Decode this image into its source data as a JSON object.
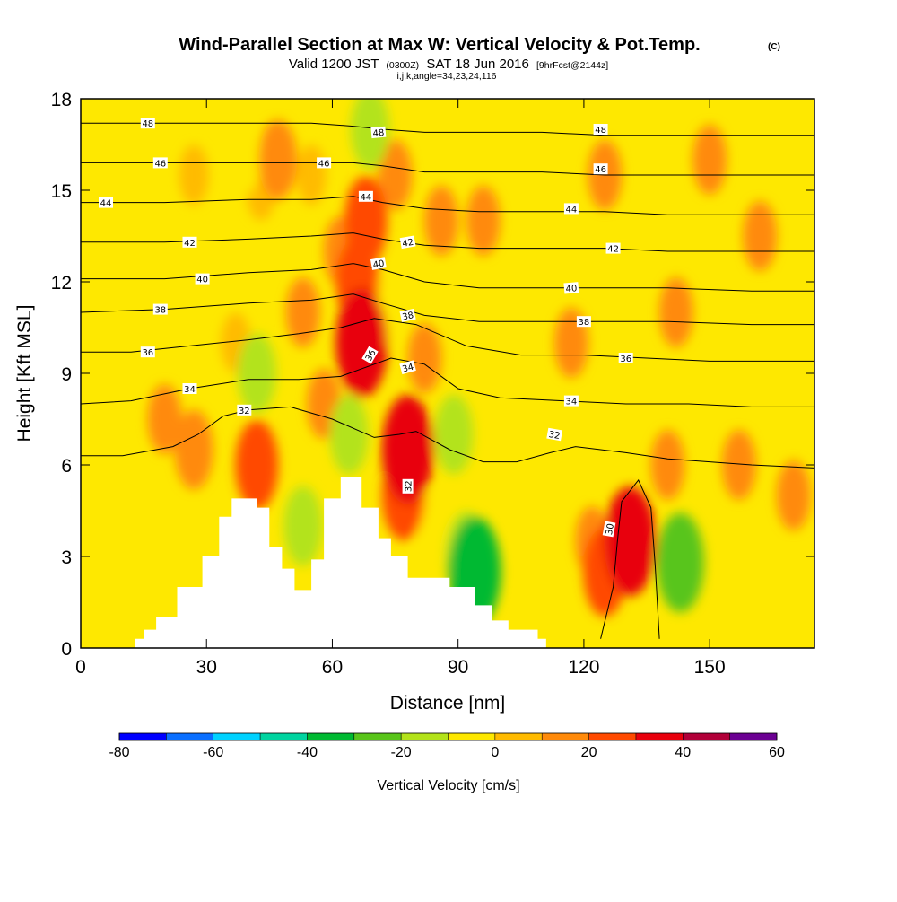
{
  "title": {
    "main": "Wind-Parallel Section at Max W: Vertical Velocity & Pot.Temp.",
    "copyright": "(C)",
    "valid_prefix": "Valid 1200 JST",
    "valid_utc": "(0300Z)",
    "valid_date": "SAT 18 Jun 2016",
    "forecast": "[9hrFcst@2144z]",
    "indices": "i,j,k,angle=34,23,24,116"
  },
  "colors": {
    "background_field": "#fee800",
    "contour": "#000000",
    "terrain": "#ffffff"
  },
  "chart_data": {
    "type": "heatmap",
    "xlabel": "Distance [nm]",
    "ylabel": "Height [Kft MSL]",
    "xlim": [
      0,
      175
    ],
    "ylim": [
      0,
      18
    ],
    "x_ticks": [
      "0",
      "30",
      "60",
      "90",
      "120",
      "150"
    ],
    "y_ticks": [
      "0",
      "3",
      "6",
      "9",
      "12",
      "15",
      "18"
    ],
    "terrain_profile": [
      [
        13,
        0.3
      ],
      [
        15,
        0.6
      ],
      [
        18,
        1.0
      ],
      [
        23,
        2.0
      ],
      [
        29,
        3.0
      ],
      [
        33,
        4.3
      ],
      [
        36,
        4.9
      ],
      [
        42,
        4.6
      ],
      [
        45,
        3.3
      ],
      [
        48,
        2.6
      ],
      [
        51,
        1.9
      ],
      [
        55,
        2.9
      ],
      [
        58,
        4.9
      ],
      [
        62,
        5.6
      ],
      [
        67,
        4.6
      ],
      [
        71,
        3.6
      ],
      [
        74,
        3.0
      ],
      [
        78,
        2.3
      ],
      [
        88,
        2.0
      ],
      [
        94,
        1.4
      ],
      [
        98,
        0.9
      ],
      [
        102,
        0.6
      ],
      [
        109,
        0.3
      ]
    ],
    "vertical_velocity_cells": [
      {
        "x": 27,
        "y": 15.5,
        "value": 5
      },
      {
        "x": 27,
        "y": 6.5,
        "value": 15
      },
      {
        "x": 20,
        "y": 7.5,
        "value": 10
      },
      {
        "x": 37,
        "y": 10,
        "value": 5
      },
      {
        "x": 39,
        "y": 16,
        "value": -10
      },
      {
        "x": 42,
        "y": 9,
        "value": -15
      },
      {
        "x": 42,
        "y": 6,
        "value": 20
      },
      {
        "x": 43,
        "y": 15,
        "value": 5
      },
      {
        "x": 47,
        "y": 16,
        "value": 15
      },
      {
        "x": 53,
        "y": 11,
        "value": 10
      },
      {
        "x": 53,
        "y": 4,
        "value": -15
      },
      {
        "x": 55,
        "y": 15.5,
        "value": 5
      },
      {
        "x": 58,
        "y": 8,
        "value": 10
      },
      {
        "x": 62,
        "y": 13,
        "value": 10
      },
      {
        "x": 64,
        "y": 7,
        "value": -15
      },
      {
        "x": 66,
        "y": 12,
        "value": 20
      },
      {
        "x": 67,
        "y": 10,
        "value": 30
      },
      {
        "x": 68,
        "y": 14,
        "value": 20
      },
      {
        "x": 69,
        "y": 17,
        "value": -15
      },
      {
        "x": 72,
        "y": 11,
        "value": -10
      },
      {
        "x": 75,
        "y": 15.5,
        "value": 10
      },
      {
        "x": 77,
        "y": 5,
        "value": 20
      },
      {
        "x": 78,
        "y": 6.5,
        "value": 30
      },
      {
        "x": 82,
        "y": 9.5,
        "value": 10
      },
      {
        "x": 84,
        "y": 4,
        "value": -10
      },
      {
        "x": 86,
        "y": 14,
        "value": 10
      },
      {
        "x": 89,
        "y": 7,
        "value": -15
      },
      {
        "x": 92,
        "y": 3,
        "value": -20
      },
      {
        "x": 94,
        "y": 2.5,
        "value": -35
      },
      {
        "x": 96,
        "y": 14,
        "value": 10
      },
      {
        "x": 100,
        "y": 17.5,
        "value": -10
      },
      {
        "x": 109,
        "y": 4,
        "value": -10
      },
      {
        "x": 117,
        "y": 10,
        "value": 10
      },
      {
        "x": 122,
        "y": 3.5,
        "value": 10
      },
      {
        "x": 125,
        "y": 2.5,
        "value": 20
      },
      {
        "x": 131,
        "y": 3.5,
        "value": 30
      },
      {
        "x": 125,
        "y": 15.5,
        "value": 10
      },
      {
        "x": 140,
        "y": 6,
        "value": 10
      },
      {
        "x": 143,
        "y": 3,
        "value": -15
      },
      {
        "x": 143,
        "y": 2.8,
        "value": -25
      },
      {
        "x": 142,
        "y": 11,
        "value": 10
      },
      {
        "x": 150,
        "y": 16,
        "value": 10
      },
      {
        "x": 157,
        "y": 6,
        "value": 10
      },
      {
        "x": 162,
        "y": 13.5,
        "value": 10
      },
      {
        "x": 170,
        "y": 5,
        "value": 10
      },
      {
        "x": 158,
        "y": 2.5,
        "value": -10
      }
    ],
    "theta_contours": [
      {
        "name": "30",
        "points": [
          [
            124,
            0.3
          ],
          [
            127,
            2.0
          ],
          [
            128,
            3.5
          ],
          [
            129,
            4.8
          ],
          [
            133,
            5.5
          ],
          [
            136,
            4.6
          ],
          [
            137,
            2.7
          ],
          [
            138,
            0.3
          ]
        ]
      },
      {
        "name": "32",
        "points": [
          [
            0,
            6.3
          ],
          [
            10,
            6.3
          ],
          [
            22,
            6.6
          ],
          [
            28,
            7.0
          ],
          [
            34,
            7.6
          ],
          [
            40,
            7.8
          ],
          [
            50,
            7.9
          ],
          [
            60,
            7.5
          ],
          [
            70,
            6.9
          ],
          [
            76,
            7.0
          ],
          [
            80,
            7.1
          ],
          [
            88,
            6.5
          ],
          [
            96,
            6.1
          ],
          [
            104,
            6.1
          ],
          [
            112,
            6.4
          ],
          [
            118,
            6.6
          ],
          [
            130,
            6.4
          ],
          [
            140,
            6.2
          ],
          [
            150,
            6.1
          ],
          [
            160,
            6.0
          ],
          [
            175,
            5.9
          ]
        ]
      },
      {
        "name": "34",
        "points": [
          [
            0,
            8.0
          ],
          [
            12,
            8.1
          ],
          [
            26,
            8.5
          ],
          [
            40,
            8.8
          ],
          [
            52,
            8.8
          ],
          [
            62,
            8.9
          ],
          [
            68,
            9.2
          ],
          [
            74,
            9.5
          ],
          [
            82,
            9.3
          ],
          [
            90,
            8.5
          ],
          [
            100,
            8.2
          ],
          [
            115,
            8.1
          ],
          [
            130,
            8.0
          ],
          [
            145,
            8.0
          ],
          [
            160,
            7.9
          ],
          [
            175,
            7.9
          ]
        ]
      },
      {
        "name": "36",
        "points": [
          [
            0,
            9.7
          ],
          [
            12,
            9.7
          ],
          [
            26,
            9.9
          ],
          [
            40,
            10.1
          ],
          [
            52,
            10.3
          ],
          [
            62,
            10.5
          ],
          [
            70,
            10.8
          ],
          [
            80,
            10.6
          ],
          [
            92,
            9.9
          ],
          [
            105,
            9.6
          ],
          [
            120,
            9.6
          ],
          [
            135,
            9.5
          ],
          [
            150,
            9.4
          ],
          [
            165,
            9.4
          ],
          [
            175,
            9.4
          ]
        ]
      },
      {
        "name": "38",
        "points": [
          [
            0,
            11.0
          ],
          [
            20,
            11.1
          ],
          [
            40,
            11.3
          ],
          [
            55,
            11.4
          ],
          [
            65,
            11.6
          ],
          [
            72,
            11.3
          ],
          [
            82,
            10.9
          ],
          [
            95,
            10.7
          ],
          [
            110,
            10.7
          ],
          [
            125,
            10.7
          ],
          [
            140,
            10.7
          ],
          [
            160,
            10.6
          ],
          [
            175,
            10.6
          ]
        ]
      },
      {
        "name": "40",
        "points": [
          [
            0,
            12.1
          ],
          [
            20,
            12.1
          ],
          [
            40,
            12.3
          ],
          [
            55,
            12.4
          ],
          [
            65,
            12.6
          ],
          [
            72,
            12.4
          ],
          [
            82,
            12.0
          ],
          [
            95,
            11.8
          ],
          [
            110,
            11.8
          ],
          [
            125,
            11.8
          ],
          [
            140,
            11.8
          ],
          [
            160,
            11.7
          ],
          [
            175,
            11.7
          ]
        ]
      },
      {
        "name": "42",
        "points": [
          [
            0,
            13.3
          ],
          [
            20,
            13.3
          ],
          [
            40,
            13.4
          ],
          [
            55,
            13.5
          ],
          [
            65,
            13.6
          ],
          [
            72,
            13.4
          ],
          [
            82,
            13.2
          ],
          [
            95,
            13.1
          ],
          [
            110,
            13.1
          ],
          [
            125,
            13.1
          ],
          [
            140,
            13.0
          ],
          [
            160,
            13.0
          ],
          [
            175,
            13.0
          ]
        ]
      },
      {
        "name": "44",
        "points": [
          [
            0,
            14.6
          ],
          [
            20,
            14.6
          ],
          [
            40,
            14.7
          ],
          [
            55,
            14.7
          ],
          [
            65,
            14.8
          ],
          [
            72,
            14.6
          ],
          [
            82,
            14.4
          ],
          [
            95,
            14.3
          ],
          [
            110,
            14.3
          ],
          [
            125,
            14.3
          ],
          [
            140,
            14.2
          ],
          [
            160,
            14.2
          ],
          [
            175,
            14.2
          ]
        ]
      },
      {
        "name": "46",
        "points": [
          [
            0,
            15.9
          ],
          [
            20,
            15.9
          ],
          [
            40,
            15.9
          ],
          [
            55,
            15.9
          ],
          [
            65,
            15.9
          ],
          [
            72,
            15.8
          ],
          [
            82,
            15.6
          ],
          [
            95,
            15.6
          ],
          [
            110,
            15.6
          ],
          [
            125,
            15.5
          ],
          [
            140,
            15.5
          ],
          [
            160,
            15.5
          ],
          [
            175,
            15.5
          ]
        ]
      },
      {
        "name": "48",
        "points": [
          [
            0,
            17.2
          ],
          [
            20,
            17.2
          ],
          [
            40,
            17.2
          ],
          [
            55,
            17.2
          ],
          [
            65,
            17.1
          ],
          [
            72,
            17.0
          ],
          [
            82,
            16.9
          ],
          [
            95,
            16.9
          ],
          [
            110,
            16.9
          ],
          [
            125,
            16.8
          ],
          [
            140,
            16.8
          ],
          [
            160,
            16.8
          ],
          [
            175,
            16.8
          ]
        ]
      }
    ],
    "contour_labels": [
      {
        "text": "48",
        "x": 16,
        "y": 17.2,
        "rot": 0
      },
      {
        "text": "46",
        "x": 19,
        "y": 15.9,
        "rot": 0
      },
      {
        "text": "44",
        "x": 6,
        "y": 14.6,
        "rot": 0
      },
      {
        "text": "42",
        "x": 26,
        "y": 13.3,
        "rot": 0
      },
      {
        "text": "40",
        "x": 29,
        "y": 12.1,
        "rot": 0
      },
      {
        "text": "38",
        "x": 19,
        "y": 11.1,
        "rot": 0
      },
      {
        "text": "36",
        "x": 16,
        "y": 9.7,
        "rot": 0
      },
      {
        "text": "34",
        "x": 26,
        "y": 8.5,
        "rot": 0
      },
      {
        "text": "32",
        "x": 39,
        "y": 7.8,
        "rot": 0
      },
      {
        "text": "48",
        "x": 71,
        "y": 16.9,
        "rot": -5
      },
      {
        "text": "46",
        "x": 58,
        "y": 15.9,
        "rot": 0
      },
      {
        "text": "44",
        "x": 68,
        "y": 14.8,
        "rot": 0
      },
      {
        "text": "42",
        "x": 78,
        "y": 13.3,
        "rot": -10
      },
      {
        "text": "40",
        "x": 71,
        "y": 12.6,
        "rot": -10
      },
      {
        "text": "38",
        "x": 78,
        "y": 10.9,
        "rot": -12
      },
      {
        "text": "36",
        "x": 69,
        "y": 9.6,
        "rot": -60
      },
      {
        "text": "34",
        "x": 78,
        "y": 9.2,
        "rot": -15
      },
      {
        "text": "32",
        "x": 78,
        "y": 5.3,
        "rot": -90
      },
      {
        "text": "48",
        "x": 124,
        "y": 17.0,
        "rot": 0
      },
      {
        "text": "46",
        "x": 124,
        "y": 15.7,
        "rot": 0
      },
      {
        "text": "44",
        "x": 117,
        "y": 14.4,
        "rot": 0
      },
      {
        "text": "42",
        "x": 127,
        "y": 13.1,
        "rot": 0
      },
      {
        "text": "40",
        "x": 117,
        "y": 11.8,
        "rot": -5
      },
      {
        "text": "38",
        "x": 120,
        "y": 10.7,
        "rot": 0
      },
      {
        "text": "36",
        "x": 130,
        "y": 9.5,
        "rot": 0
      },
      {
        "text": "34",
        "x": 117,
        "y": 8.1,
        "rot": 0
      },
      {
        "text": "32",
        "x": 113,
        "y": 7.0,
        "rot": 10
      },
      {
        "text": "30",
        "x": 126,
        "y": 3.9,
        "rot": -80
      }
    ],
    "colorbar": {
      "title": "Vertical Velocity [cm/s]",
      "tick_labels": [
        "-80",
        "-60",
        "-40",
        "-20",
        "0",
        "20",
        "40",
        "60"
      ],
      "bounds": [
        -80,
        -70,
        -60,
        -50,
        -40,
        -30,
        -20,
        -10,
        0,
        10,
        20,
        30,
        40,
        50,
        60
      ],
      "colors": [
        "#0000ff",
        "#0a6fff",
        "#00d2ff",
        "#00d4a0",
        "#00b932",
        "#59c51a",
        "#b3e31a",
        "#fee800",
        "#ffbb00",
        "#ff8a0a",
        "#ff4a00",
        "#e8000d",
        "#b10039",
        "#6b0092"
      ]
    }
  }
}
